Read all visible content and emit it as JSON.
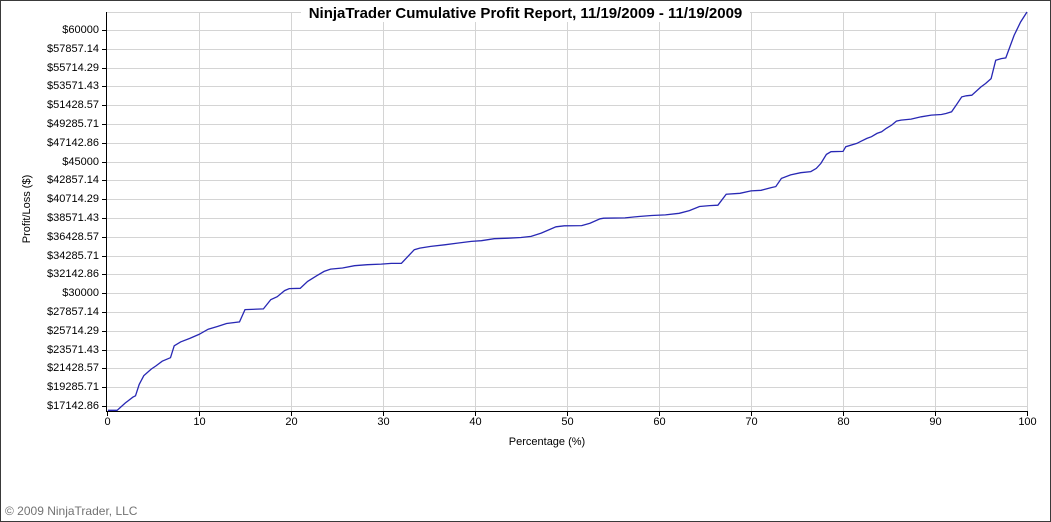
{
  "header": {
    "title": "NinjaTrader Cumulative Profit Report, 11/19/2009 - 11/19/2009"
  },
  "footer": {
    "copyright": "© 2009 NinjaTrader, LLC"
  },
  "chart_data": {
    "type": "line",
    "title": "NinjaTrader Cumulative Profit Report, 11/19/2009 - 11/19/2009",
    "xlabel": "Percentage (%)",
    "ylabel": "Profit/Loss ($)",
    "xlim": [
      0,
      100
    ],
    "ylim": [
      16573,
      62052
    ],
    "grid": true,
    "legend_position": "none",
    "line_color": "#2828b4",
    "grid_color": "#d4d4d4",
    "axis_color": "#000000",
    "x_ticks": [
      0,
      10,
      20,
      30,
      40,
      50,
      60,
      70,
      80,
      90,
      100
    ],
    "y_ticks": [
      [
        60000,
        "$60000"
      ],
      [
        57857.14,
        "$57857.14"
      ],
      [
        55714.29,
        "$55714.29"
      ],
      [
        53571.43,
        "$53571.43"
      ],
      [
        51428.57,
        "$51428.57"
      ],
      [
        49285.71,
        "$49285.71"
      ],
      [
        47142.86,
        "$47142.86"
      ],
      [
        45000,
        "$45000"
      ],
      [
        42857.14,
        "$42857.14"
      ],
      [
        40714.29,
        "$40714.29"
      ],
      [
        38571.43,
        "$38571.43"
      ],
      [
        36428.57,
        "$36428.57"
      ],
      [
        34285.71,
        "$34285.71"
      ],
      [
        32142.86,
        "$32142.86"
      ],
      [
        30000,
        "$30000"
      ],
      [
        27857.14,
        "$27857.14"
      ],
      [
        25714.29,
        "$25714.29"
      ],
      [
        23571.43,
        "$23571.43"
      ],
      [
        21428.57,
        "$21428.57"
      ],
      [
        19285.71,
        "$19285.71"
      ],
      [
        17142.86,
        "$17142.86"
      ]
    ],
    "series": [
      {
        "name": "Cumulative Profit",
        "points": [
          [
            0.1,
            16650
          ],
          [
            1.1,
            16650
          ],
          [
            2,
            17500
          ],
          [
            2.8,
            18150
          ],
          [
            3.1,
            18300
          ],
          [
            3.5,
            19600
          ],
          [
            4,
            20600
          ],
          [
            4.8,
            21350
          ],
          [
            5.3,
            21700
          ],
          [
            6,
            22250
          ],
          [
            6.9,
            22650
          ],
          [
            7.3,
            24000
          ],
          [
            8,
            24450
          ],
          [
            9,
            24850
          ],
          [
            10,
            25300
          ],
          [
            11,
            25900
          ],
          [
            12,
            26200
          ],
          [
            13,
            26550
          ],
          [
            14.4,
            26730
          ],
          [
            15,
            28130
          ],
          [
            17,
            28210
          ],
          [
            17.8,
            29270
          ],
          [
            18.5,
            29600
          ],
          [
            19.3,
            30300
          ],
          [
            19.8,
            30520
          ],
          [
            21,
            30560
          ],
          [
            21.8,
            31350
          ],
          [
            22.8,
            32000
          ],
          [
            23.6,
            32490
          ],
          [
            24.3,
            32750
          ],
          [
            25.6,
            32870
          ],
          [
            26.9,
            33140
          ],
          [
            28.3,
            33250
          ],
          [
            29.8,
            33320
          ],
          [
            30.9,
            33400
          ],
          [
            32,
            33410
          ],
          [
            33.4,
            34960
          ],
          [
            34,
            35140
          ],
          [
            35.2,
            35330
          ],
          [
            36.7,
            35520
          ],
          [
            38.1,
            35710
          ],
          [
            39.6,
            35900
          ],
          [
            40.7,
            35980
          ],
          [
            42.1,
            36210
          ],
          [
            43.6,
            36270
          ],
          [
            45,
            36350
          ],
          [
            46.1,
            36470
          ],
          [
            47.2,
            36850
          ],
          [
            48.8,
            37570
          ],
          [
            49.7,
            37680
          ],
          [
            51.6,
            37700
          ],
          [
            52.5,
            37980
          ],
          [
            53.6,
            38480
          ],
          [
            54,
            38550
          ],
          [
            56.3,
            38580
          ],
          [
            57.8,
            38740
          ],
          [
            59.2,
            38860
          ],
          [
            60.7,
            38930
          ],
          [
            62.2,
            39110
          ],
          [
            63.3,
            39420
          ],
          [
            64.4,
            39880
          ],
          [
            65.5,
            39990
          ],
          [
            66.4,
            40030
          ],
          [
            67.3,
            41280
          ],
          [
            68.8,
            41390
          ],
          [
            70,
            41660
          ],
          [
            71.1,
            41730
          ],
          [
            72.2,
            42040
          ],
          [
            72.7,
            42150
          ],
          [
            73.3,
            43090
          ],
          [
            74.3,
            43480
          ],
          [
            75.4,
            43740
          ],
          [
            76.5,
            43860
          ],
          [
            77.1,
            44230
          ],
          [
            77.6,
            44800
          ],
          [
            78.2,
            45820
          ],
          [
            78.7,
            46130
          ],
          [
            80,
            46160
          ],
          [
            80.3,
            46700
          ],
          [
            81.5,
            47070
          ],
          [
            82,
            47340
          ],
          [
            82.6,
            47650
          ],
          [
            83.1,
            47840
          ],
          [
            83.7,
            48210
          ],
          [
            84.2,
            48400
          ],
          [
            84.7,
            48780
          ],
          [
            85.3,
            49170
          ],
          [
            85.8,
            49620
          ],
          [
            86.3,
            49730
          ],
          [
            87.4,
            49850
          ],
          [
            88.5,
            50110
          ],
          [
            89.6,
            50300
          ],
          [
            90.7,
            50370
          ],
          [
            91.2,
            50480
          ],
          [
            91.8,
            50680
          ],
          [
            92.3,
            51440
          ],
          [
            92.9,
            52380
          ],
          [
            93.4,
            52500
          ],
          [
            94,
            52570
          ],
          [
            95,
            53520
          ],
          [
            95.5,
            53900
          ],
          [
            96.1,
            54460
          ],
          [
            96.6,
            56550
          ],
          [
            97.2,
            56740
          ],
          [
            97.7,
            56820
          ],
          [
            98.6,
            59390
          ],
          [
            99.3,
            60910
          ],
          [
            100,
            62050
          ]
        ]
      }
    ]
  }
}
